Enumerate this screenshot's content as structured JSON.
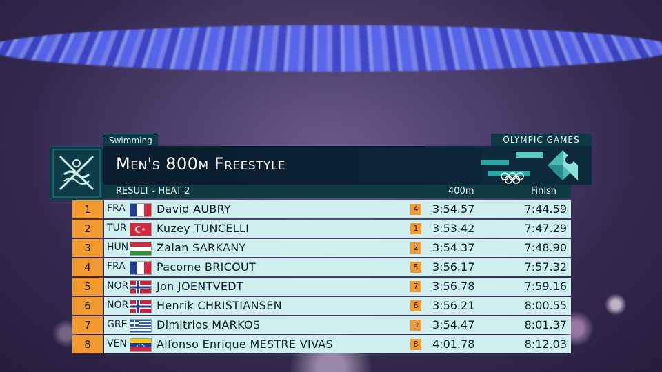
{
  "header": {
    "sport": "Swimming",
    "brand": "OLYMPIC GAMES",
    "event_title": "Men's 800m Freestyle",
    "result_label": "RESULT - HEAT 2",
    "col_split": "400m",
    "col_finish": "Finish"
  },
  "colors": {
    "rank_badge": "#f29a2e",
    "row_bg": "#cfeeee",
    "title_bg": "#0a1d2e",
    "accent_teal": "#5cc8c4"
  },
  "rows": [
    {
      "rank": "1",
      "noc": "FRA",
      "flag": "france-flag",
      "name": "David AUBRY",
      "split_rank": "4",
      "split": "3:54.57",
      "finish": "7:44.59"
    },
    {
      "rank": "2",
      "noc": "TUR",
      "flag": "turkey-flag",
      "name": "Kuzey TUNCELLI",
      "split_rank": "1",
      "split": "3:53.42",
      "finish": "7:47.29"
    },
    {
      "rank": "3",
      "noc": "HUN",
      "flag": "hungary-flag",
      "name": "Zalan SARKANY",
      "split_rank": "2",
      "split": "3:54.37",
      "finish": "7:48.90"
    },
    {
      "rank": "4",
      "noc": "FRA",
      "flag": "france-flag",
      "name": "Pacome BRICOUT",
      "split_rank": "5",
      "split": "3:56.17",
      "finish": "7:57.32"
    },
    {
      "rank": "5",
      "noc": "NOR",
      "flag": "norway-flag",
      "name": "Jon JOENTVEDT",
      "split_rank": "7",
      "split": "3:56.78",
      "finish": "7:59.16"
    },
    {
      "rank": "6",
      "noc": "NOR",
      "flag": "norway-flag",
      "name": "Henrik CHRISTIANSEN",
      "split_rank": "6",
      "split": "3:56.21",
      "finish": "8:00.55"
    },
    {
      "rank": "7",
      "noc": "GRE",
      "flag": "greece-flag",
      "name": "Dimitrios MARKOS",
      "split_rank": "3",
      "split": "3:54.47",
      "finish": "8:01.37"
    },
    {
      "rank": "8",
      "noc": "VEN",
      "flag": "venezuela-flag",
      "name": "Alfonso Enrique MESTRE VIVAS",
      "split_rank": "8",
      "split": "4:01.78",
      "finish": "8:12.03"
    }
  ]
}
